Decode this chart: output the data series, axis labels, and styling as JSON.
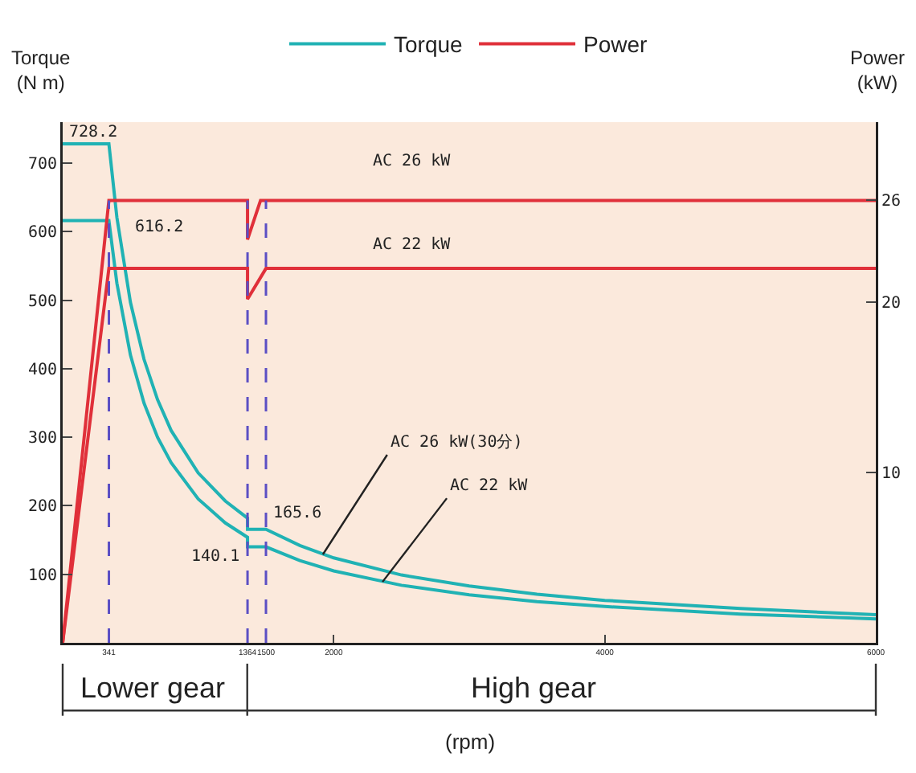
{
  "chart_data": {
    "type": "line",
    "xlabel": "(rpm)",
    "ylabel": "Torque\n(N m)",
    "y2label": "Power\n(kW)",
    "xlim": [
      0,
      6000
    ],
    "xticks": [
      341,
      1364,
      1500,
      2000,
      4000,
      6000
    ],
    "ylim": [
      0,
      760
    ],
    "yticks": [
      100,
      200,
      300,
      400,
      500,
      600,
      700
    ],
    "y2lim": [
      0,
      30.6
    ],
    "y2ticks": [
      10,
      20,
      26
    ],
    "grid": false,
    "legend": "top",
    "marker": "none",
    "line_style": "solid",
    "series": [
      {
        "name": "Torque",
        "color": "#20b2b4",
        "x": [
          0,
          341,
          400,
          500,
          600,
          700,
          800,
          1000,
          1200,
          1364,
          1364,
          1500,
          1750,
          2000,
          2500,
          3000,
          3500,
          4000,
          5000,
          6000
        ],
        "values": [
          728.2,
          728.2,
          621,
          497,
          414,
          355,
          310,
          248,
          207,
          182,
          165.6,
          165.6,
          142,
          124,
          99,
          83,
          71,
          62,
          50,
          41
        ]
      },
      {
        "color": "#20b2b4",
        "x": [
          0,
          341,
          400,
          500,
          600,
          700,
          800,
          1000,
          1200,
          1364,
          1364,
          1500,
          1750,
          2000,
          2500,
          3000,
          3500,
          4000,
          5000,
          6000
        ],
        "values": [
          616.2,
          616.2,
          525,
          420,
          350,
          300,
          263,
          210,
          175,
          154,
          140.1,
          140.1,
          120,
          105,
          84,
          70,
          60,
          53,
          42,
          35
        ]
      },
      {
        "name": "Power",
        "color": "#e0303a",
        "axis": "y2",
        "x": [
          0,
          341,
          1364,
          1364,
          1460,
          6000
        ],
        "values": [
          0,
          26,
          26,
          23.7,
          26,
          26
        ]
      },
      {
        "color": "#e0303a",
        "axis": "y2",
        "x": [
          0,
          341,
          1364,
          1364,
          1500,
          6000
        ],
        "values": [
          0,
          22,
          22,
          20.2,
          22,
          22
        ]
      }
    ],
    "ref_lines": [
      {
        "axis": "x",
        "value": 341,
        "color": "#5b4fc4",
        "line_style": "dashed"
      },
      {
        "axis": "x",
        "value": 1364,
        "color": "#5b4fc4",
        "line_style": "dashed"
      },
      {
        "axis": "x",
        "value": 1500,
        "color": "#5b4fc4",
        "line_style": "dashed"
      }
    ],
    "annotations": [
      {
        "text": "728.2",
        "x": 0,
        "y": 728.2
      },
      {
        "text": "616.2",
        "x": 341,
        "y": 616.2
      },
      {
        "text": "165.6",
        "x": 1500,
        "y": 165.6
      },
      {
        "text": "140.1",
        "x": 1364,
        "y": 140.1
      },
      {
        "text": "AC 26 kW(30分)",
        "x": 1920,
        "y": 129
      },
      {
        "text": "AC 22 kW",
        "x": 2360,
        "y": 89
      },
      "AC 26 kW",
      "AC 22 kW",
      "Lower gear",
      "High gear"
    ]
  }
}
